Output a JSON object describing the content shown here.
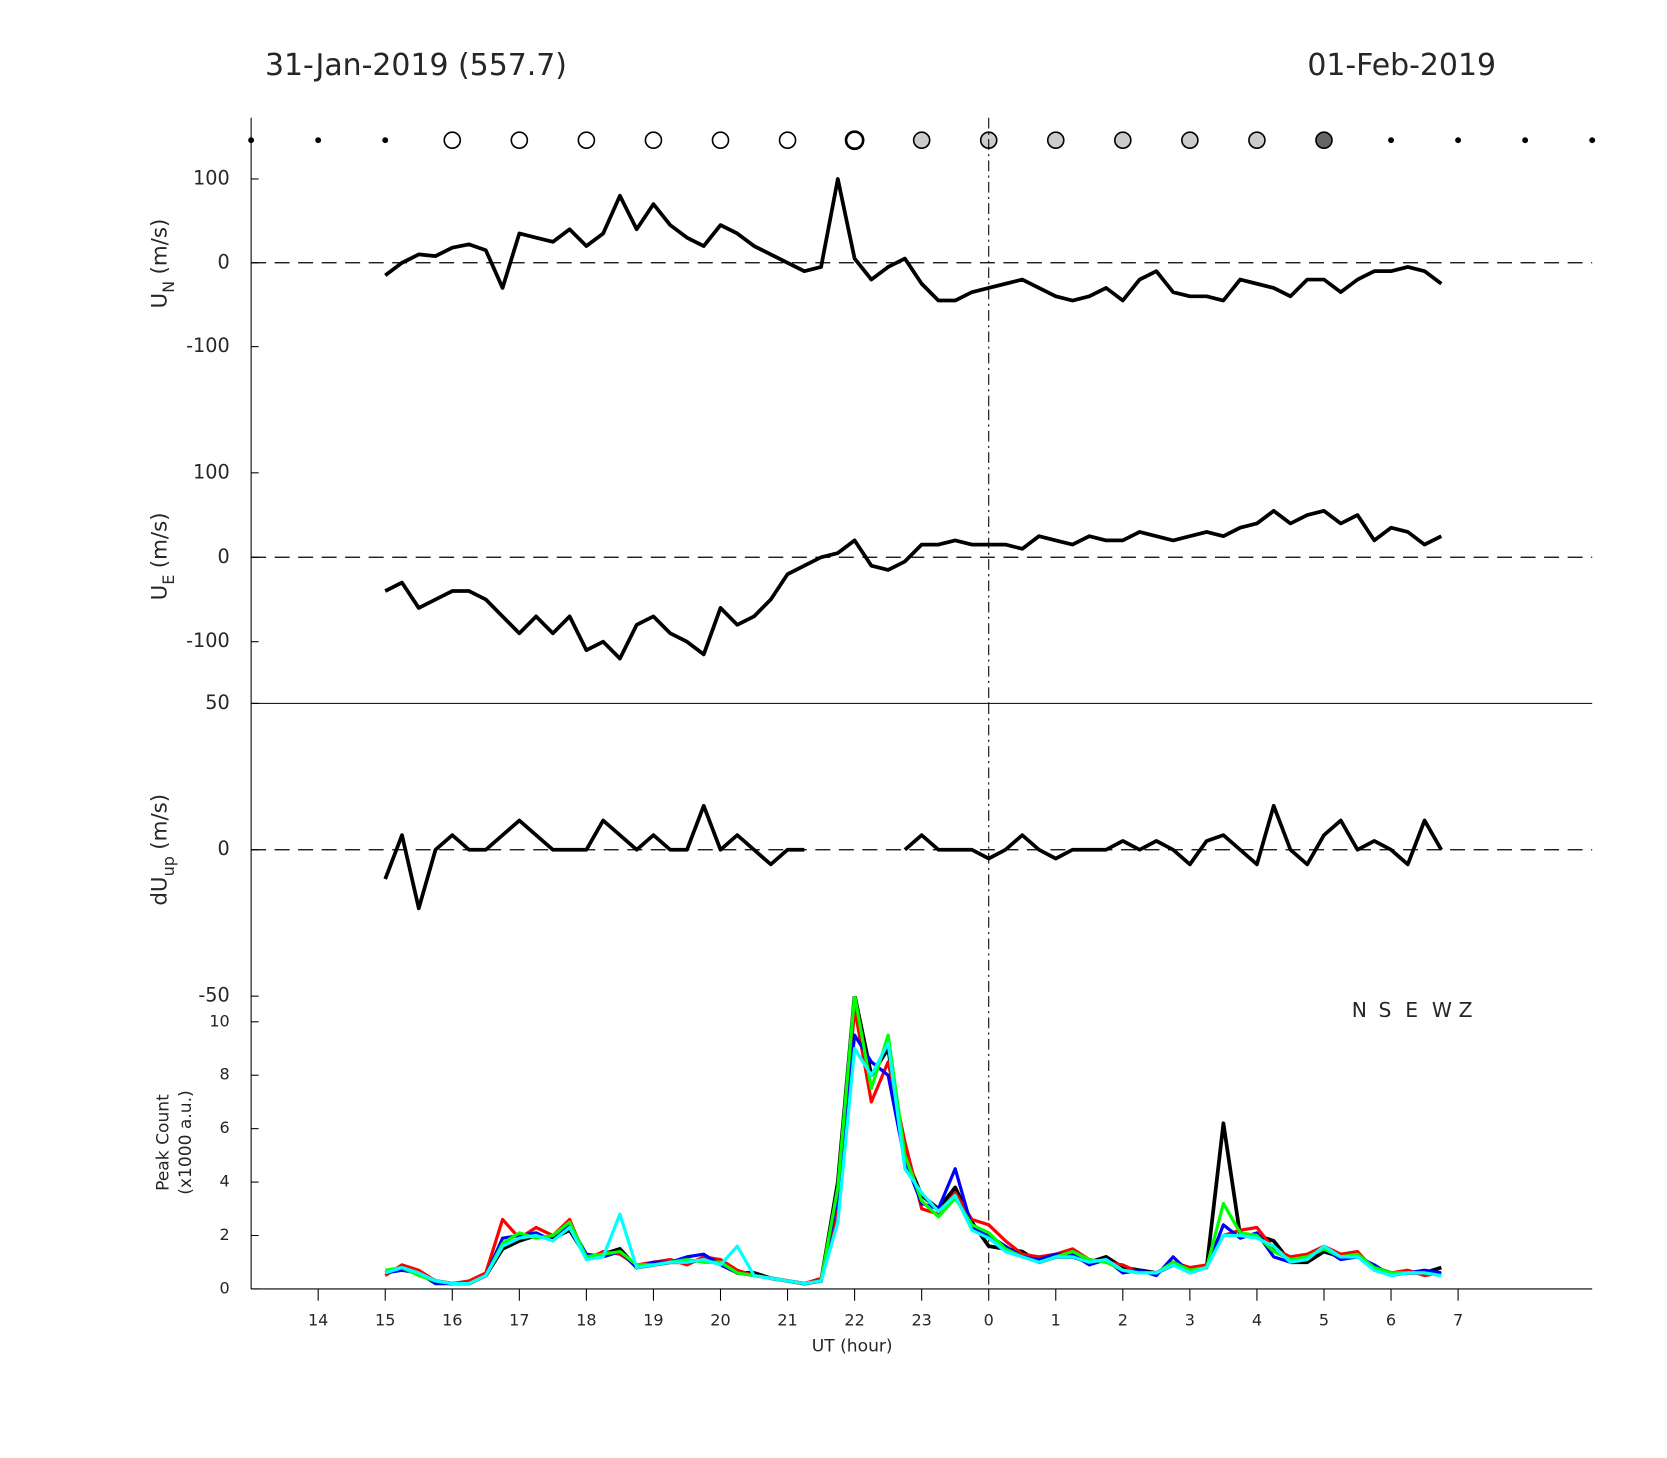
{
  "chart_data": [
    {
      "type": "line",
      "title": "31-Jan-2019 (557.7)",
      "title_right": "01-Feb-2019",
      "ylabel": {
        "main": "U",
        "sub": "N",
        "unit": "(m/s)"
      },
      "xlim": [
        13,
        33
      ],
      "ylim": [
        -175,
        173
      ],
      "yticks": [
        -100,
        0,
        100
      ],
      "zero_line": true,
      "vline": 24,
      "x": [
        15,
        15.25,
        15.5,
        15.75,
        16,
        16.25,
        16.5,
        16.75,
        17,
        17.25,
        17.5,
        17.75,
        18,
        18.25,
        18.5,
        18.75,
        19,
        19.25,
        19.5,
        19.75,
        20,
        20.25,
        20.5,
        20.75,
        21,
        21.25,
        21.5,
        21.75,
        22,
        22.25,
        22.5,
        22.75,
        23,
        23.25,
        23.5,
        23.75,
        24,
        24.25,
        24.5,
        24.75,
        25,
        25.25,
        25.5,
        25.75,
        26,
        26.25,
        26.5,
        26.75,
        27,
        27.25,
        27.5,
        27.75,
        28,
        28.25,
        28.5,
        28.75,
        29,
        29.25,
        29.5,
        29.75,
        30,
        30.25,
        30.5,
        30.75
      ],
      "series": [
        {
          "color": "#000000",
          "values": [
            -15,
            0,
            10,
            8,
            18,
            22,
            15,
            -30,
            35,
            30,
            25,
            40,
            20,
            35,
            80,
            40,
            70,
            45,
            30,
            20,
            45,
            35,
            20,
            10,
            0,
            -10,
            -5,
            100,
            5,
            -20,
            -5,
            5,
            -25,
            -45,
            -45,
            -35,
            -30,
            -25,
            -20,
            -30,
            -40,
            -45,
            -40,
            -30,
            -45,
            -20,
            -10,
            -35,
            -40,
            -40,
            -45,
            -20,
            -25,
            -30,
            -40,
            -20,
            -20,
            -35,
            -20,
            -10,
            -10,
            -5,
            -10,
            -25
          ]
        }
      ]
    },
    {
      "type": "line",
      "ylabel": {
        "main": "U",
        "sub": "E",
        "unit": "(m/s)"
      },
      "xlim": [
        13,
        33
      ],
      "ylim": [
        -173,
        175
      ],
      "yticks": [
        -100,
        0,
        100
      ],
      "zero_line": true,
      "vline": 24,
      "x": [
        15,
        15.25,
        15.5,
        15.75,
        16,
        16.25,
        16.5,
        16.75,
        17,
        17.25,
        17.5,
        17.75,
        18,
        18.25,
        18.5,
        18.75,
        19,
        19.25,
        19.5,
        19.75,
        20,
        20.25,
        20.5,
        20.75,
        21,
        21.25,
        21.5,
        21.75,
        22,
        22.25,
        22.5,
        22.75,
        23,
        23.25,
        23.5,
        23.75,
        24,
        24.25,
        24.5,
        24.75,
        25,
        25.25,
        25.5,
        25.75,
        26,
        26.25,
        26.5,
        26.75,
        27,
        27.25,
        27.5,
        27.75,
        28,
        28.25,
        28.5,
        28.75,
        29,
        29.25,
        29.5,
        29.75,
        30,
        30.25,
        30.5,
        30.75
      ],
      "series": [
        {
          "color": "#000000",
          "values": [
            -40,
            -30,
            -60,
            -50,
            -40,
            -40,
            -50,
            -70,
            -90,
            -70,
            -90,
            -70,
            -110,
            -100,
            -120,
            -80,
            -70,
            -90,
            -100,
            -115,
            -60,
            -80,
            -70,
            -50,
            -20,
            -10,
            0,
            5,
            20,
            -10,
            -15,
            -5,
            15,
            15,
            20,
            15,
            15,
            15,
            10,
            25,
            20,
            15,
            25,
            20,
            20,
            30,
            25,
            20,
            25,
            30,
            25,
            35,
            40,
            55,
            40,
            50,
            55,
            40,
            50,
            20,
            35,
            30,
            15,
            25
          ]
        }
      ]
    },
    {
      "type": "line",
      "ylabel": {
        "main": "dU",
        "sub": "up",
        "unit": "(m/s)"
      },
      "xlim": [
        13,
        33
      ],
      "ylim": [
        -50,
        50
      ],
      "yticks": [
        -50,
        0,
        50
      ],
      "zero_line": true,
      "vline": 24,
      "x": [
        15,
        15.25,
        15.5,
        15.75,
        16,
        16.25,
        16.5,
        16.75,
        17,
        17.25,
        17.5,
        17.75,
        18,
        18.25,
        18.5,
        18.75,
        19,
        19.25,
        19.5,
        19.75,
        20,
        20.25,
        20.5,
        20.75,
        21,
        21.25,
        21.5,
        21.75,
        22,
        22.25,
        22.5,
        22.75,
        23,
        23.25,
        23.5,
        23.75,
        24,
        24.25,
        24.5,
        24.75,
        25,
        25.25,
        25.5,
        25.75,
        26,
        26.25,
        26.5,
        26.75,
        27,
        27.25,
        27.5,
        27.75,
        28,
        28.25,
        28.5,
        28.75,
        29,
        29.25,
        29.5,
        29.75,
        30,
        30.25,
        30.5,
        30.75
      ],
      "series": [
        {
          "color": "#000000",
          "values": [
            -10,
            5,
            -20,
            0,
            5,
            0,
            0,
            5,
            10,
            5,
            0,
            0,
            0,
            10,
            5,
            0,
            5,
            0,
            0,
            15,
            0,
            5,
            0,
            -5,
            0,
            0,
            null,
            null,
            null,
            null,
            null,
            0,
            5,
            0,
            0,
            0,
            -3,
            0,
            5,
            0,
            -3,
            0,
            0,
            0,
            3,
            0,
            3,
            0,
            -5,
            3,
            5,
            0,
            -5,
            15,
            0,
            -5,
            5,
            10,
            0,
            3,
            0,
            -5,
            10,
            0
          ]
        }
      ]
    },
    {
      "type": "line",
      "ylabel": [
        "Peak Count",
        "(x1000 a.u.)"
      ],
      "xlabel": "UT (hour)",
      "xlim": [
        13,
        33
      ],
      "ylim": [
        0,
        10.96
      ],
      "yticks": [
        0,
        2,
        4,
        6,
        8,
        10
      ],
      "vline": 24,
      "xticks": [
        14,
        15,
        16,
        17,
        18,
        19,
        20,
        21,
        22,
        23,
        {
          "value": 24,
          "label": "0"
        },
        {
          "value": 25,
          "label": "1"
        },
        {
          "value": 26,
          "label": "2"
        },
        {
          "value": 27,
          "label": "3"
        },
        {
          "value": 28,
          "label": "4"
        },
        {
          "value": 29,
          "label": "5"
        },
        {
          "value": 30,
          "label": "6"
        },
        {
          "value": 31,
          "label": "7"
        }
      ],
      "x": [
        15,
        15.25,
        15.5,
        15.75,
        16,
        16.25,
        16.5,
        16.75,
        17,
        17.25,
        17.5,
        17.75,
        18,
        18.25,
        18.5,
        18.75,
        19,
        19.25,
        19.5,
        19.75,
        20,
        20.25,
        20.5,
        20.75,
        21,
        21.25,
        21.5,
        21.75,
        22,
        22.25,
        22.5,
        22.75,
        23,
        23.25,
        23.5,
        23.75,
        24,
        24.25,
        24.5,
        24.75,
        25,
        25.25,
        25.5,
        25.75,
        26,
        26.25,
        26.5,
        26.75,
        27,
        27.25,
        27.5,
        27.75,
        28,
        28.25,
        28.5,
        28.75,
        29,
        29.25,
        29.5,
        29.75,
        30,
        30.25,
        30.5,
        30.75
      ],
      "series": [
        {
          "name": "N",
          "color": "#000000",
          "values": [
            0.6,
            0.8,
            0.6,
            0.3,
            0.2,
            0.2,
            0.5,
            1.5,
            1.8,
            2.0,
            1.9,
            2.2,
            1.2,
            1.3,
            1.5,
            0.8,
            0.9,
            1.0,
            1.0,
            1.1,
            1.0,
            0.6,
            0.6,
            0.4,
            0.3,
            0.2,
            0.3,
            4.0,
            11.0,
            8.0,
            9.0,
            5.0,
            3.5,
            3.0,
            3.8,
            2.5,
            1.6,
            1.5,
            1.4,
            1.0,
            1.2,
            1.2,
            1.0,
            1.2,
            0.8,
            0.7,
            0.6,
            0.9,
            0.7,
            0.8,
            6.2,
            2.0,
            2.0,
            1.8,
            1.0,
            1.0,
            1.4,
            1.2,
            1.3,
            0.8,
            0.6,
            0.6,
            0.6,
            0.8
          ]
        },
        {
          "name": "S",
          "color": "#ff0000",
          "values": [
            0.5,
            0.9,
            0.7,
            0.3,
            0.2,
            0.3,
            0.6,
            2.6,
            1.9,
            2.3,
            2.0,
            2.6,
            1.1,
            1.4,
            1.3,
            0.9,
            1.0,
            1.1,
            0.9,
            1.2,
            1.1,
            0.7,
            0.5,
            0.4,
            0.3,
            0.2,
            0.4,
            3.0,
            10.5,
            7.0,
            8.5,
            5.5,
            3.0,
            2.8,
            3.6,
            2.6,
            2.4,
            1.8,
            1.3,
            1.2,
            1.3,
            1.5,
            1.1,
            1.0,
            0.9,
            0.6,
            0.6,
            1.0,
            0.8,
            0.9,
            2.0,
            2.2,
            2.3,
            1.5,
            1.2,
            1.3,
            1.6,
            1.3,
            1.4,
            0.7,
            0.6,
            0.7,
            0.5,
            0.6
          ]
        },
        {
          "name": "E",
          "color": "#0000ff",
          "values": [
            0.6,
            0.7,
            0.6,
            0.2,
            0.2,
            0.2,
            0.5,
            1.9,
            2.0,
            2.1,
            1.8,
            2.4,
            1.3,
            1.2,
            1.4,
            0.8,
            1.0,
            1.0,
            1.2,
            1.3,
            0.9,
            0.6,
            0.5,
            0.4,
            0.3,
            0.2,
            0.3,
            3.5,
            9.5,
            8.5,
            8.0,
            4.8,
            3.2,
            3.0,
            4.5,
            2.3,
            2.0,
            1.6,
            1.2,
            1.1,
            1.3,
            1.3,
            0.9,
            1.1,
            0.6,
            0.7,
            0.5,
            1.2,
            0.6,
            0.8,
            2.4,
            1.9,
            2.1,
            1.2,
            1.0,
            1.2,
            1.5,
            1.1,
            1.2,
            0.9,
            0.5,
            0.6,
            0.7,
            0.6
          ]
        },
        {
          "name": "W",
          "color": "#00ff00",
          "values": [
            0.7,
            0.8,
            0.5,
            0.3,
            0.2,
            0.2,
            0.5,
            1.7,
            2.1,
            1.9,
            2.0,
            2.5,
            1.2,
            1.3,
            1.4,
            0.9,
            0.9,
            1.0,
            1.1,
            1.0,
            1.0,
            0.6,
            0.5,
            0.4,
            0.3,
            0.2,
            0.3,
            3.8,
            11.0,
            7.5,
            9.5,
            5.0,
            3.3,
            2.7,
            3.4,
            2.4,
            2.1,
            1.5,
            1.2,
            1.0,
            1.2,
            1.4,
            1.1,
            1.0,
            0.7,
            0.6,
            0.6,
            1.0,
            0.7,
            0.8,
            3.2,
            2.1,
            2.0,
            1.4,
            1.1,
            1.2,
            1.5,
            1.2,
            1.3,
            0.8,
            0.6,
            0.6,
            0.6,
            0.5
          ]
        },
        {
          "name": "Z",
          "color": "#00ffff",
          "values": [
            0.6,
            0.8,
            0.6,
            0.3,
            0.2,
            0.2,
            0.5,
            1.6,
            1.9,
            2.0,
            1.8,
            2.3,
            1.1,
            1.2,
            2.8,
            0.8,
            0.9,
            1.0,
            1.0,
            1.1,
            0.9,
            1.6,
            0.5,
            0.4,
            0.3,
            0.2,
            0.3,
            2.5,
            9.0,
            8.0,
            9.2,
            4.5,
            3.6,
            2.9,
            3.5,
            2.2,
            1.9,
            1.4,
            1.2,
            1.0,
            1.2,
            1.2,
            1.0,
            1.1,
            0.7,
            0.6,
            0.6,
            0.9,
            0.6,
            0.8,
            2.0,
            2.0,
            1.9,
            1.6,
            1.0,
            1.1,
            1.6,
            1.2,
            1.2,
            0.7,
            0.5,
            0.6,
            0.6,
            0.5
          ]
        }
      ]
    }
  ]
}
